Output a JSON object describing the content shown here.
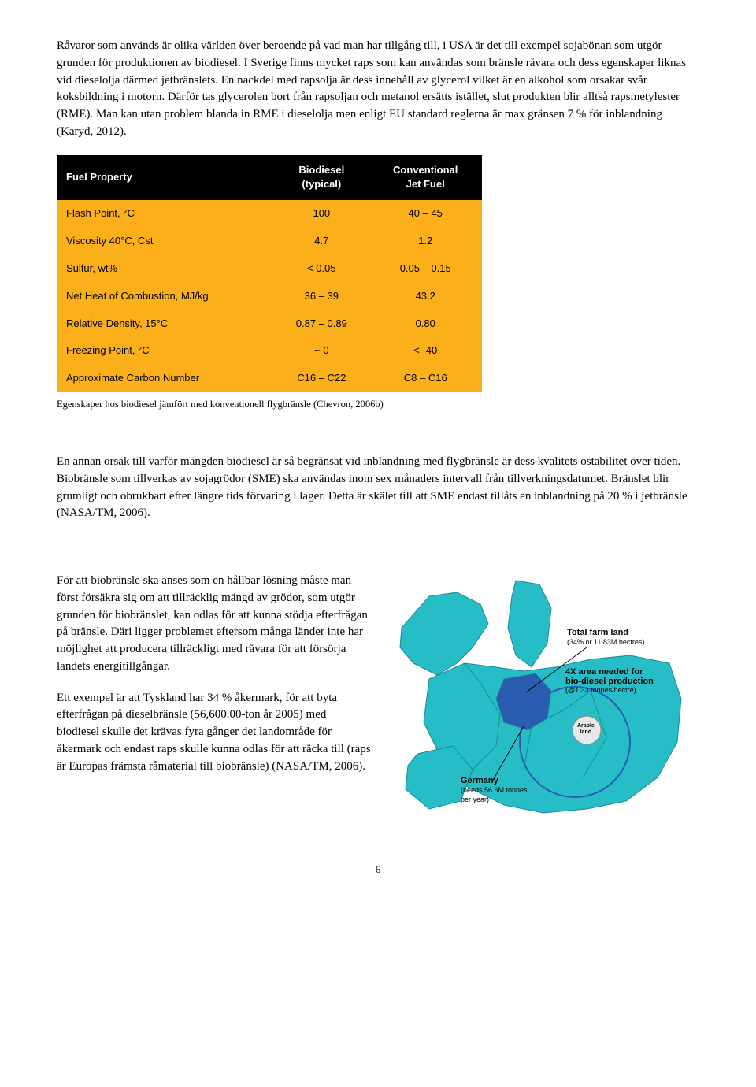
{
  "paragraphs": {
    "p1": "Råvaror som används är olika världen över beroende på vad man har tillgång till, i USA är det till exempel sojabönan som utgör grunden för produktionen av biodiesel. I Sverige finns mycket raps som kan användas som bränsle råvara och dess egenskaper liknas vid dieselolja därmed jetbränslets. En nackdel med rapsolja är dess innehåll av glycerol vilket är en alkohol som orsakar svår koksbildning i motorn. Därför tas glycerolen bort från rapsoljan och metanol ersätts istället, slut produkten blir alltså rapsmetylester (RME). Man kan utan problem blanda in RME i dieselolja men enligt EU standard reglerna är max gränsen 7 % för inblandning (Karyd, 2012).",
    "p2": "En annan orsak till varför mängden biodiesel är så begränsat vid inblandning med flygbränsle är dess kvalitets ostabilitet över tiden. Biobränsle som tillverkas av sojagrödor (SME) ska användas inom sex månaders intervall från tillverkningsdatumet. Bränslet blir grumligt och obrukbart efter längre tids förvaring i lager. Detta är skälet till att SME endast tillåts en inblandning på 20 % i jetbränsle (NASA/TM, 2006).",
    "p3": "För att biobränsle ska anses som en hållbar lösning måste man först försäkra sig om att tillräcklig mängd av grödor, som utgör grunden för biobränslet, kan odlas för att kunna stödja efterfrågan på bränsle. Däri ligger problemet eftersom många länder inte har möjlighet att producera tillräckligt med råvara för att försörja landets energitillgångar.",
    "p4": "Ett exempel är att Tyskland har 34 % åkermark, för att byta efterfrågan på dieselbränsle (56,600.00-ton år 2005) med biodiesel skulle det krävas fyra gånger det landområde för åkermark och endast raps skulle kunna odlas för att räcka till (raps är Europas främsta råmaterial till biobränsle) (NASA/TM, 2006)."
  },
  "table": {
    "header_bg": "#000000",
    "header_fg": "#ffffff",
    "row_bg": "#fbaf1a",
    "row_fg": "#000000",
    "font_size": 13,
    "columns": [
      "Fuel Property",
      "Biodiesel\n(typical)",
      "Conventional\nJet Fuel"
    ],
    "rows": [
      [
        "Flash Point, °C",
        "100",
        "40 – 45"
      ],
      [
        "Viscosity 40°C, Cst",
        "4.7",
        "1.2"
      ],
      [
        "Sulfur, wt%",
        "< 0.05",
        "0.05 – 0.15"
      ],
      [
        "Net Heat of Combustion, MJ/kg",
        "36 – 39",
        "43.2"
      ],
      [
        "Relative Density, 15°C",
        "0.87 – 0.89",
        "0.80"
      ],
      [
        "Freezing Point, °C",
        "~ 0",
        "< -40"
      ],
      [
        "Approximate Carbon Number",
        "C16 – C22",
        "C8 – C16"
      ]
    ]
  },
  "caption": "Egenskaper hos biodiesel jämfört med konventionell flygbränsle (Chevron, 2006b)",
  "map": {
    "sea_color": "#ffffff",
    "land_color": "#27bdc7",
    "highlight_color": "#2a5db0",
    "border_color": "#1b8a94",
    "arable_color": "#e8e8e8",
    "labels": {
      "total_farm": "Total farm land",
      "total_farm_sub": "(34% or 11.83M hectres)",
      "fourx": "4X area needed for\nbio-diesel production",
      "fourx_sub": "(@1.33 tonnes/hectre)",
      "germany": "Germany",
      "germany_sub": "(needs 56.6M tonnes\nper year)",
      "arable": "Arable\nland"
    }
  },
  "page_number": "6"
}
